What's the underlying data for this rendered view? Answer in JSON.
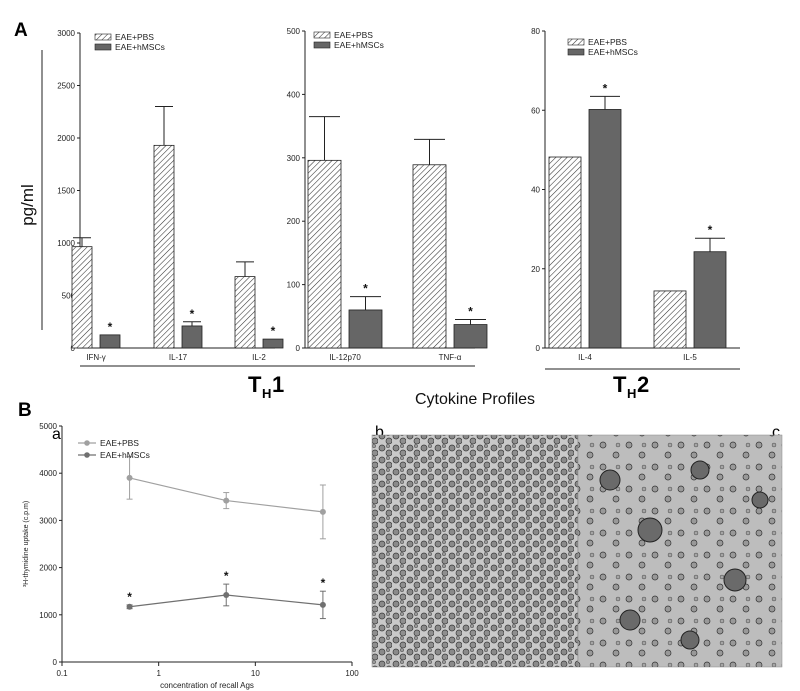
{
  "figure": {
    "panel_a": "A",
    "panel_b": "B",
    "sub_a": "a",
    "sub_b": "b",
    "sub_c": "c",
    "th1_main": "T",
    "th1_sub": "H",
    "th1_num": "1",
    "th2_main": "T",
    "th2_sub": "H",
    "th2_num": "2",
    "profiles_label": "Cytokine Profiles",
    "ylabel_a": "pg/ml",
    "sig_marker": "*"
  },
  "colors": {
    "pbs_fill": "hatched-white",
    "hmsc_fill": "#666666",
    "line_pbs": "#a0a0a0",
    "line_hmsc": "#707070"
  },
  "chart_data": [
    {
      "type": "bar",
      "categories": [
        "IFN-γ",
        "IL-17",
        "IL-2"
      ],
      "series": [
        {
          "name": "EAE+PBS",
          "values": [
            965,
            1930,
            680
          ],
          "errors": [
            85,
            370,
            140
          ]
        },
        {
          "name": "EAE+hMSCs",
          "values": [
            125,
            210,
            85
          ],
          "errors": [
            0,
            40,
            0
          ]
        }
      ],
      "significant": [
        false,
        false,
        false,
        true,
        true,
        true
      ],
      "ylim": [
        0,
        3000
      ],
      "yticks": [
        0,
        500,
        1000,
        1500,
        2000,
        2500,
        3000
      ],
      "ylabel": "pg/ml"
    },
    {
      "type": "bar",
      "categories": [
        "IL-12p70",
        "TNF-α"
      ],
      "series": [
        {
          "name": "EAE+PBS",
          "values": [
            296,
            289
          ],
          "errors": [
            69,
            40
          ]
        },
        {
          "name": "EAE+hMSCs",
          "values": [
            60,
            37
          ],
          "errors": [
            21,
            8
          ]
        }
      ],
      "significant": [
        false,
        false,
        true,
        true
      ],
      "ylim": [
        0,
        500
      ],
      "yticks": [
        0,
        100,
        200,
        300,
        400,
        500
      ]
    },
    {
      "type": "bar",
      "categories": [
        "IL-4",
        "IL-5"
      ],
      "series": [
        {
          "name": "EAE+PBS",
          "values": [
            48.2,
            14.4
          ],
          "errors": [
            0,
            0
          ]
        },
        {
          "name": "EAE+hMSCs",
          "values": [
            60.2,
            24.3
          ],
          "errors": [
            3.3,
            3.4
          ]
        }
      ],
      "significant": [
        false,
        false,
        true,
        true
      ],
      "ylim": [
        0,
        80
      ],
      "yticks": [
        0,
        20,
        40,
        60,
        80
      ]
    },
    {
      "type": "line",
      "xscale": "log",
      "x": [
        0.5,
        5,
        50
      ],
      "series": [
        {
          "name": "EAE+PBS",
          "values": [
            3900,
            3420,
            3180
          ],
          "errors": [
            450,
            170,
            570
          ],
          "significant": [
            false,
            false,
            false
          ]
        },
        {
          "name": "EAE+hMSCs",
          "values": [
            1170,
            1420,
            1210
          ],
          "errors": [
            40,
            230,
            290
          ],
          "significant": [
            true,
            true,
            true
          ]
        }
      ],
      "xlim": [
        0.1,
        100
      ],
      "ylim": [
        0,
        5000
      ],
      "xticks": [
        0.1,
        1,
        10,
        100
      ],
      "xtick_labels": [
        "0.1",
        "1",
        "10",
        "100"
      ],
      "yticks": [
        0,
        1000,
        2000,
        3000,
        4000,
        5000
      ],
      "xlabel": "concentration of recall Ags",
      "ylabel": "³H-thymidine uptake (c.p.m)",
      "legend": "top-left"
    }
  ]
}
